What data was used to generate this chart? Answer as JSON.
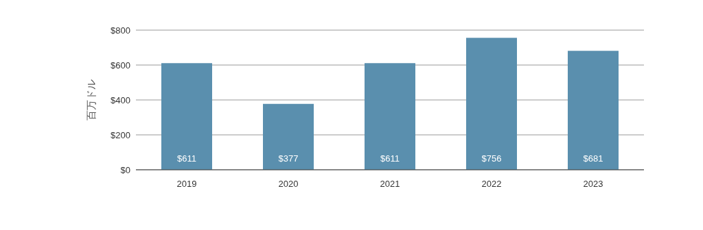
{
  "chart_data": {
    "type": "bar",
    "ylabel": "百万ドル",
    "categories": [
      "2019",
      "2020",
      "2021",
      "2022",
      "2023"
    ],
    "values": [
      611,
      377,
      611,
      756,
      681
    ],
    "color": "#5a8fae",
    "ylim": [
      0,
      800
    ],
    "yticks": [
      {
        "value": 0,
        "label": "$0"
      },
      {
        "value": 200,
        "label": "$200"
      },
      {
        "value": 400,
        "label": "$400"
      },
      {
        "value": 600,
        "label": "$600"
      },
      {
        "value": 800,
        "label": "$800"
      }
    ],
    "grid": "y",
    "value_labels": [
      "$611",
      "$377",
      "$611",
      "$756",
      "$681"
    ]
  }
}
